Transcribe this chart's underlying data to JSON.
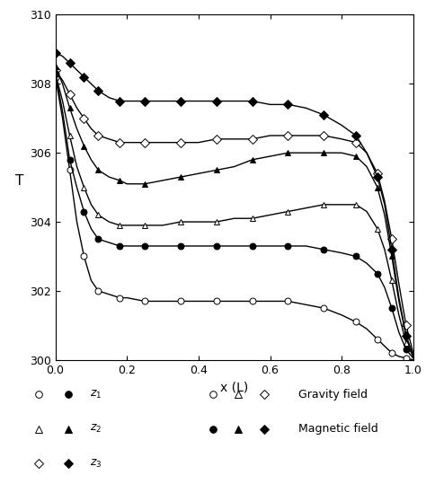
{
  "title": "",
  "xlabel": "x (L)",
  "ylabel": "T",
  "xlim": [
    0,
    1
  ],
  "ylim": [
    300,
    310
  ],
  "yticks": [
    300,
    302,
    304,
    306,
    308,
    310
  ],
  "xticks": [
    0,
    0.2,
    0.4,
    0.6,
    0.8,
    1.0
  ],
  "curves": {
    "gravity_z1": {
      "marker": "o",
      "filled": false,
      "x": [
        0.0,
        0.02,
        0.04,
        0.06,
        0.08,
        0.1,
        0.12,
        0.15,
        0.18,
        0.2,
        0.25,
        0.3,
        0.35,
        0.4,
        0.45,
        0.5,
        0.55,
        0.6,
        0.65,
        0.7,
        0.75,
        0.8,
        0.84,
        0.87,
        0.9,
        0.92,
        0.94,
        0.96,
        0.98,
        1.0
      ],
      "y": [
        308.2,
        307.0,
        305.5,
        304.0,
        303.0,
        302.3,
        302.0,
        301.9,
        301.8,
        301.8,
        301.7,
        301.7,
        301.7,
        301.7,
        301.7,
        301.7,
        301.7,
        301.7,
        301.7,
        301.6,
        301.5,
        301.3,
        301.1,
        300.9,
        300.6,
        300.4,
        300.2,
        300.1,
        300.05,
        300.0
      ]
    },
    "gravity_z2": {
      "marker": "^",
      "filled": false,
      "x": [
        0.0,
        0.02,
        0.04,
        0.06,
        0.08,
        0.1,
        0.12,
        0.15,
        0.18,
        0.2,
        0.25,
        0.3,
        0.35,
        0.4,
        0.45,
        0.5,
        0.55,
        0.6,
        0.65,
        0.7,
        0.75,
        0.8,
        0.84,
        0.87,
        0.9,
        0.92,
        0.94,
        0.96,
        0.98,
        1.0
      ],
      "y": [
        308.3,
        307.5,
        306.5,
        305.6,
        305.0,
        304.5,
        304.2,
        304.0,
        303.9,
        303.9,
        303.9,
        303.9,
        304.0,
        304.0,
        304.0,
        304.1,
        304.1,
        304.2,
        304.3,
        304.4,
        304.5,
        304.5,
        304.5,
        304.3,
        303.8,
        303.2,
        302.3,
        301.3,
        300.5,
        300.1
      ]
    },
    "gravity_z3": {
      "marker": "D",
      "filled": false,
      "x": [
        0.0,
        0.02,
        0.04,
        0.06,
        0.08,
        0.1,
        0.12,
        0.15,
        0.18,
        0.2,
        0.25,
        0.3,
        0.35,
        0.4,
        0.45,
        0.5,
        0.55,
        0.6,
        0.65,
        0.7,
        0.75,
        0.8,
        0.84,
        0.87,
        0.9,
        0.92,
        0.94,
        0.96,
        0.98,
        1.0
      ],
      "y": [
        308.4,
        308.1,
        307.7,
        307.3,
        307.0,
        306.7,
        306.5,
        306.4,
        306.3,
        306.3,
        306.3,
        306.3,
        306.3,
        306.3,
        306.4,
        306.4,
        306.4,
        306.5,
        306.5,
        306.5,
        306.5,
        306.4,
        306.3,
        306.0,
        305.4,
        304.6,
        303.5,
        302.2,
        301.0,
        300.2
      ]
    },
    "magnetic_z1": {
      "marker": "o",
      "filled": true,
      "x": [
        0.0,
        0.02,
        0.04,
        0.06,
        0.08,
        0.1,
        0.12,
        0.15,
        0.18,
        0.2,
        0.25,
        0.3,
        0.35,
        0.4,
        0.45,
        0.5,
        0.55,
        0.6,
        0.65,
        0.7,
        0.75,
        0.8,
        0.84,
        0.87,
        0.9,
        0.92,
        0.94,
        0.96,
        0.98,
        1.0
      ],
      "y": [
        308.3,
        307.2,
        305.8,
        305.0,
        304.3,
        303.8,
        303.5,
        303.4,
        303.3,
        303.3,
        303.3,
        303.3,
        303.3,
        303.3,
        303.3,
        303.3,
        303.3,
        303.3,
        303.3,
        303.3,
        303.2,
        303.1,
        303.0,
        302.8,
        302.5,
        302.1,
        301.5,
        300.8,
        300.3,
        300.05
      ]
    },
    "magnetic_z2": {
      "marker": "^",
      "filled": true,
      "x": [
        0.0,
        0.02,
        0.04,
        0.06,
        0.08,
        0.1,
        0.12,
        0.15,
        0.18,
        0.2,
        0.25,
        0.3,
        0.35,
        0.4,
        0.45,
        0.5,
        0.55,
        0.6,
        0.65,
        0.7,
        0.75,
        0.8,
        0.84,
        0.87,
        0.9,
        0.92,
        0.94,
        0.96,
        0.98,
        1.0
      ],
      "y": [
        308.5,
        308.0,
        307.3,
        306.7,
        306.2,
        305.8,
        305.5,
        305.3,
        305.2,
        305.1,
        305.1,
        305.2,
        305.3,
        305.4,
        305.5,
        305.6,
        305.8,
        305.9,
        306.0,
        306.0,
        306.0,
        306.0,
        305.9,
        305.6,
        305.0,
        304.2,
        303.0,
        301.7,
        300.7,
        300.1
      ]
    },
    "magnetic_z3": {
      "marker": "D",
      "filled": true,
      "x": [
        0.0,
        0.02,
        0.04,
        0.06,
        0.08,
        0.1,
        0.12,
        0.15,
        0.18,
        0.2,
        0.25,
        0.3,
        0.35,
        0.4,
        0.45,
        0.5,
        0.55,
        0.6,
        0.65,
        0.7,
        0.75,
        0.8,
        0.84,
        0.87,
        0.9,
        0.92,
        0.94,
        0.96,
        0.98,
        1.0
      ],
      "y": [
        308.9,
        308.8,
        308.6,
        308.4,
        308.2,
        308.0,
        307.8,
        307.6,
        307.5,
        307.5,
        307.5,
        307.5,
        307.5,
        307.5,
        307.5,
        307.5,
        307.5,
        307.4,
        307.4,
        307.3,
        307.1,
        306.8,
        306.5,
        306.0,
        305.3,
        304.5,
        303.2,
        301.8,
        300.7,
        300.1
      ]
    }
  },
  "legend": {
    "z1_label": "$z_1$",
    "z2_label": "$z_2$",
    "z3_label": "$z_3$",
    "gravity_label": "Gravity field",
    "magnetic_label": "Magnetic field"
  },
  "background_color": "#ffffff",
  "marker_size": 5,
  "linewidth": 1.0
}
